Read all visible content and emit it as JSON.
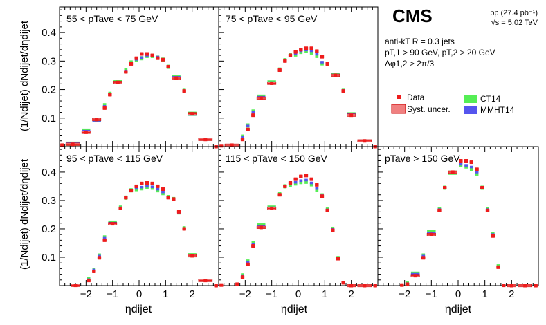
{
  "header": {
    "experiment": "CMS",
    "dataset": "pp (27.4 pb⁻¹)",
    "energy": "√s = 5.02 TeV"
  },
  "selection": {
    "line1": "anti-kT R = 0.3 jets",
    "line2": "pT,1 > 90 GeV, pT,2 > 20 GeV",
    "line3": "Δφ1,2 > 2π/3"
  },
  "legend": {
    "data": "Data",
    "syst": "Syst. uncer.",
    "ct14": "CT14",
    "mmht14": "MMHT14"
  },
  "axes": {
    "xlabel": "ηdijet",
    "ylabel": "(1/Ndijet) dNdijet/dηdijet"
  },
  "colors": {
    "data": "#ee1c1c",
    "syst": "#f08080",
    "ct14": "#55ee55",
    "mmht14": "#5555ee"
  },
  "chart_data": [
    {
      "type": "scatter",
      "title": "55 < pTave < 75 GeV",
      "xlim": [
        -3.0,
        3.0
      ],
      "ylim": [
        0,
        0.49
      ],
      "xticks": [
        -2,
        -1,
        0,
        1,
        2
      ],
      "yticks": [
        0.1,
        0.2,
        0.3,
        0.4
      ],
      "bins": [
        [
          -3.0,
          -2.8
        ],
        [
          -2.8,
          -2.2
        ],
        [
          -2.2,
          -1.8
        ],
        [
          -1.8,
          -1.4
        ],
        [
          -1.4,
          -1.2
        ],
        [
          -1.2,
          -1.0
        ],
        [
          -1.0,
          -0.6
        ],
        [
          -0.6,
          -0.4
        ],
        [
          -0.4,
          -0.2
        ],
        [
          -0.2,
          0.0
        ],
        [
          0.0,
          0.2
        ],
        [
          0.2,
          0.4
        ],
        [
          0.4,
          0.6
        ],
        [
          0.6,
          0.8
        ],
        [
          0.8,
          1.0
        ],
        [
          1.0,
          1.2
        ],
        [
          1.2,
          1.6
        ],
        [
          1.6,
          1.8
        ],
        [
          1.8,
          2.2
        ],
        [
          2.2,
          2.8
        ],
        [
          2.8,
          3.0
        ]
      ],
      "data": [
        0.005,
        0.008,
        0.05,
        0.095,
        0.135,
        0.182,
        0.225,
        0.262,
        0.29,
        0.31,
        0.325,
        0.325,
        0.32,
        0.31,
        0.305,
        0.28,
        0.24,
        0.195,
        0.115,
        0.025,
        0.0
      ],
      "ct14": [
        null,
        0.01,
        0.056,
        0.094,
        0.145,
        0.185,
        0.228,
        0.268,
        0.295,
        0.305,
        0.31,
        0.318,
        0.318,
        0.312,
        0.305,
        0.28,
        0.244,
        0.198,
        0.115,
        null,
        null
      ],
      "mmht14": [
        null,
        0.01,
        0.054,
        0.092,
        0.141,
        0.182,
        0.225,
        0.265,
        0.293,
        0.306,
        0.312,
        0.32,
        0.319,
        0.314,
        0.306,
        0.281,
        0.243,
        0.196,
        0.113,
        null,
        null
      ]
    },
    {
      "type": "scatter",
      "title": "75 < pTave < 95 GeV",
      "xlim": [
        -3.0,
        3.0
      ],
      "ylim": [
        0,
        0.49
      ],
      "xticks": [
        -2,
        -1,
        0,
        1,
        2
      ],
      "yticks": [
        0.1,
        0.2,
        0.3,
        0.4
      ],
      "bins": [
        [
          -3.0,
          -2.8
        ],
        [
          -2.8,
          -2.2
        ],
        [
          -2.2,
          -2.0
        ],
        [
          -2.0,
          -1.8
        ],
        [
          -1.8,
          -1.6
        ],
        [
          -1.6,
          -1.2
        ],
        [
          -1.2,
          -0.8
        ],
        [
          -0.8,
          -0.6
        ],
        [
          -0.6,
          -0.4
        ],
        [
          -0.4,
          -0.2
        ],
        [
          -0.2,
          0.0
        ],
        [
          0.0,
          0.2
        ],
        [
          0.2,
          0.4
        ],
        [
          0.4,
          0.6
        ],
        [
          0.6,
          0.8
        ],
        [
          0.8,
          1.0
        ],
        [
          1.0,
          1.2
        ],
        [
          1.2,
          1.6
        ],
        [
          1.6,
          1.8
        ],
        [
          1.8,
          2.2
        ],
        [
          2.2,
          2.8
        ],
        [
          2.8,
          3.0
        ]
      ],
      "data": [
        0.003,
        0.005,
        0.025,
        0.06,
        0.11,
        0.17,
        0.222,
        0.268,
        0.3,
        0.32,
        0.332,
        0.34,
        0.345,
        0.345,
        0.335,
        0.315,
        0.29,
        0.25,
        0.195,
        0.11,
        0.02,
        0.0
      ],
      "ct14": [
        null,
        null,
        0.035,
        0.074,
        0.123,
        0.175,
        0.225,
        0.27,
        0.303,
        0.322,
        0.323,
        0.332,
        0.335,
        0.33,
        0.318,
        0.292,
        0.29,
        0.25,
        0.198,
        0.113,
        null,
        null
      ],
      "mmht14": [
        null,
        null,
        0.034,
        0.072,
        0.12,
        0.173,
        0.224,
        0.269,
        0.302,
        0.321,
        0.326,
        0.336,
        0.339,
        0.336,
        0.324,
        0.296,
        0.291,
        0.251,
        0.197,
        0.112,
        null,
        null
      ]
    },
    {
      "type": "scatter",
      "title": "95 < pTave < 115 GeV",
      "xlim": [
        -3.0,
        3.0
      ],
      "ylim": [
        0,
        0.49
      ],
      "xticks": [
        -2,
        -1,
        0,
        1,
        2
      ],
      "yticks": [
        0.1,
        0.2,
        0.3,
        0.4
      ],
      "bins": [
        [
          -2.6,
          -2.2
        ],
        [
          -2.0,
          -1.8
        ],
        [
          -1.8,
          -1.6
        ],
        [
          -1.6,
          -1.4
        ],
        [
          -1.4,
          -1.2
        ],
        [
          -1.2,
          -0.8
        ],
        [
          -0.8,
          -0.6
        ],
        [
          -0.6,
          -0.4
        ],
        [
          -0.4,
          -0.2
        ],
        [
          -0.2,
          0.0
        ],
        [
          0.0,
          0.2
        ],
        [
          0.2,
          0.4
        ],
        [
          0.4,
          0.6
        ],
        [
          0.6,
          0.8
        ],
        [
          0.8,
          1.0
        ],
        [
          1.0,
          1.2
        ],
        [
          1.2,
          1.4
        ],
        [
          1.4,
          1.6
        ],
        [
          1.6,
          1.8
        ],
        [
          1.8,
          2.2
        ],
        [
          2.2,
          2.8
        ],
        [
          2.8,
          3.0
        ]
      ],
      "data": [
        0.001,
        0.018,
        0.05,
        0.098,
        0.16,
        0.218,
        0.272,
        0.31,
        0.335,
        0.35,
        0.36,
        0.362,
        0.36,
        0.35,
        0.34,
        0.31,
        0.305,
        0.26,
        0.2,
        0.105,
        0.018,
        0.0
      ],
      "ct14": [
        null,
        0.022,
        0.056,
        0.106,
        0.17,
        0.222,
        0.275,
        0.31,
        0.336,
        0.34,
        0.343,
        0.347,
        0.345,
        0.336,
        0.326,
        0.312,
        0.305,
        0.258,
        0.202,
        0.107,
        null,
        null
      ],
      "mmht14": [
        null,
        0.021,
        0.055,
        0.104,
        0.167,
        0.22,
        0.274,
        0.31,
        0.336,
        0.343,
        0.347,
        0.35,
        0.348,
        0.34,
        0.33,
        0.312,
        0.304,
        0.257,
        0.201,
        0.106,
        null,
        null
      ]
    },
    {
      "type": "scatter",
      "title": "115 < pTave < 150 GeV",
      "xlim": [
        -3.0,
        3.0
      ],
      "ylim": [
        0,
        0.49
      ],
      "xticks": [
        -2,
        -1,
        0,
        1,
        2
      ],
      "yticks": [
        0.1,
        0.2,
        0.3,
        0.4
      ],
      "bins": [
        [
          -3.0,
          -2.8
        ],
        [
          -2.4,
          -2.2
        ],
        [
          -2.2,
          -2.0
        ],
        [
          -2.0,
          -1.8
        ],
        [
          -1.8,
          -1.6
        ],
        [
          -1.6,
          -1.2
        ],
        [
          -1.2,
          -0.8
        ],
        [
          -0.8,
          -0.6
        ],
        [
          -0.6,
          -0.4
        ],
        [
          -0.4,
          -0.2
        ],
        [
          -0.2,
          0.0
        ],
        [
          0.0,
          0.2
        ],
        [
          0.2,
          0.4
        ],
        [
          0.4,
          0.6
        ],
        [
          0.6,
          0.8
        ],
        [
          0.8,
          1.0
        ],
        [
          1.0,
          1.2
        ],
        [
          1.2,
          1.4
        ],
        [
          1.4,
          1.6
        ],
        [
          1.6,
          1.8
        ],
        [
          1.8,
          2.2
        ],
        [
          2.2,
          2.8
        ],
        [
          2.8,
          3.0
        ]
      ],
      "data": [
        0.002,
        0.005,
        0.03,
        0.075,
        0.14,
        0.205,
        0.272,
        0.32,
        0.35,
        0.362,
        0.375,
        0.385,
        0.388,
        0.375,
        0.355,
        0.315,
        0.265,
        0.195,
        0.095,
        0.01,
        0.0,
        0.0,
        0.0
      ],
      "ct14": [
        null,
        null,
        0.036,
        0.085,
        0.15,
        0.212,
        0.275,
        0.322,
        0.35,
        0.355,
        0.36,
        0.365,
        0.366,
        0.357,
        0.338,
        0.318,
        0.268,
        0.2,
        0.097,
        null,
        null,
        null,
        null
      ],
      "mmht14": [
        null,
        null,
        0.035,
        0.082,
        0.146,
        0.21,
        0.274,
        0.321,
        0.351,
        0.358,
        0.364,
        0.37,
        0.372,
        0.362,
        0.342,
        0.317,
        0.267,
        0.199,
        0.096,
        null,
        null,
        null,
        null
      ]
    },
    {
      "type": "scatter",
      "title": "pTave > 150 GeV",
      "xlim": [
        -3.0,
        3.0
      ],
      "ylim": [
        0,
        0.49
      ],
      "xticks": [
        -2,
        -1,
        0,
        1,
        2
      ],
      "yticks": [
        0.1,
        0.2,
        0.3,
        0.4
      ],
      "bins": [
        [
          -2.2,
          -2.0
        ],
        [
          -2.0,
          -1.8
        ],
        [
          -1.8,
          -1.4
        ],
        [
          -1.4,
          -1.2
        ],
        [
          -1.2,
          -0.8
        ],
        [
          -0.8,
          -0.6
        ],
        [
          -0.6,
          -0.4
        ],
        [
          -0.4,
          0.0
        ],
        [
          0.0,
          0.2
        ],
        [
          0.2,
          0.4
        ],
        [
          0.4,
          0.6
        ],
        [
          0.6,
          0.8
        ],
        [
          0.8,
          1.0
        ],
        [
          1.0,
          1.2
        ],
        [
          1.2,
          1.4
        ],
        [
          1.4,
          1.6
        ],
        [
          1.6,
          1.8
        ],
        [
          1.8,
          2.2
        ],
        [
          2.2,
          2.8
        ],
        [
          2.8,
          3.0
        ]
      ],
      "data": [
        0.002,
        0.005,
        0.035,
        0.098,
        0.18,
        0.265,
        0.345,
        0.4,
        0.44,
        0.44,
        0.435,
        0.41,
        0.345,
        0.265,
        0.175,
        0.065,
        0.001,
        0.0,
        0.0,
        0.0
      ],
      "ct14": [
        null,
        0.008,
        0.042,
        0.106,
        0.188,
        0.27,
        0.345,
        0.398,
        0.425,
        0.42,
        0.412,
        0.395,
        0.345,
        0.27,
        0.182,
        0.068,
        null,
        null,
        null,
        null
      ],
      "mmht14": [
        null,
        0.007,
        0.04,
        0.104,
        0.185,
        0.268,
        0.345,
        0.398,
        0.428,
        0.424,
        0.418,
        0.4,
        0.345,
        0.268,
        0.18,
        0.066,
        null,
        null,
        null,
        null
      ]
    }
  ]
}
